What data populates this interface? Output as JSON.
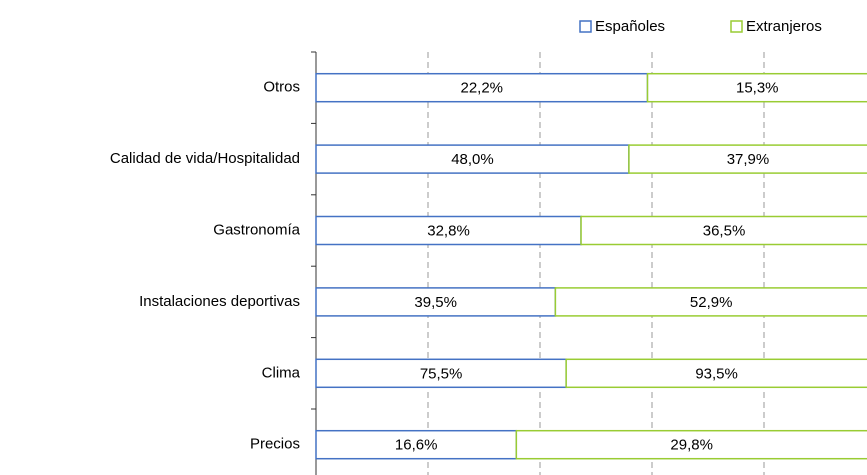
{
  "chart_data": {
    "type": "bar",
    "orientation": "horizontal",
    "stacked": "percent",
    "categories": [
      "Otros",
      "Calidad de vida/Hospitalidad",
      "Gastronomía",
      "Instalaciones deportivas",
      "Clima",
      "Precios"
    ],
    "series": [
      {
        "name": "Españoles",
        "color": "#4472c4",
        "values": [
          22.2,
          48.0,
          32.8,
          39.5,
          75.5,
          16.6
        ],
        "value_labels": [
          "22,2%",
          "48,0%",
          "32,8%",
          "39,5%",
          "75,5%",
          "16,6%"
        ]
      },
      {
        "name": "Extranjeros",
        "color": "#99cc33",
        "values": [
          15.3,
          37.9,
          36.5,
          52.9,
          93.5,
          29.8
        ],
        "value_labels": [
          "15,3%",
          "37,9%",
          "36,5%",
          "52,9%",
          "93,5%",
          "29,8%"
        ]
      }
    ],
    "xlim": [
      0,
      100
    ],
    "xticks": [
      0,
      20,
      40,
      60,
      80,
      100
    ],
    "grid": true,
    "legend": "top-right"
  }
}
